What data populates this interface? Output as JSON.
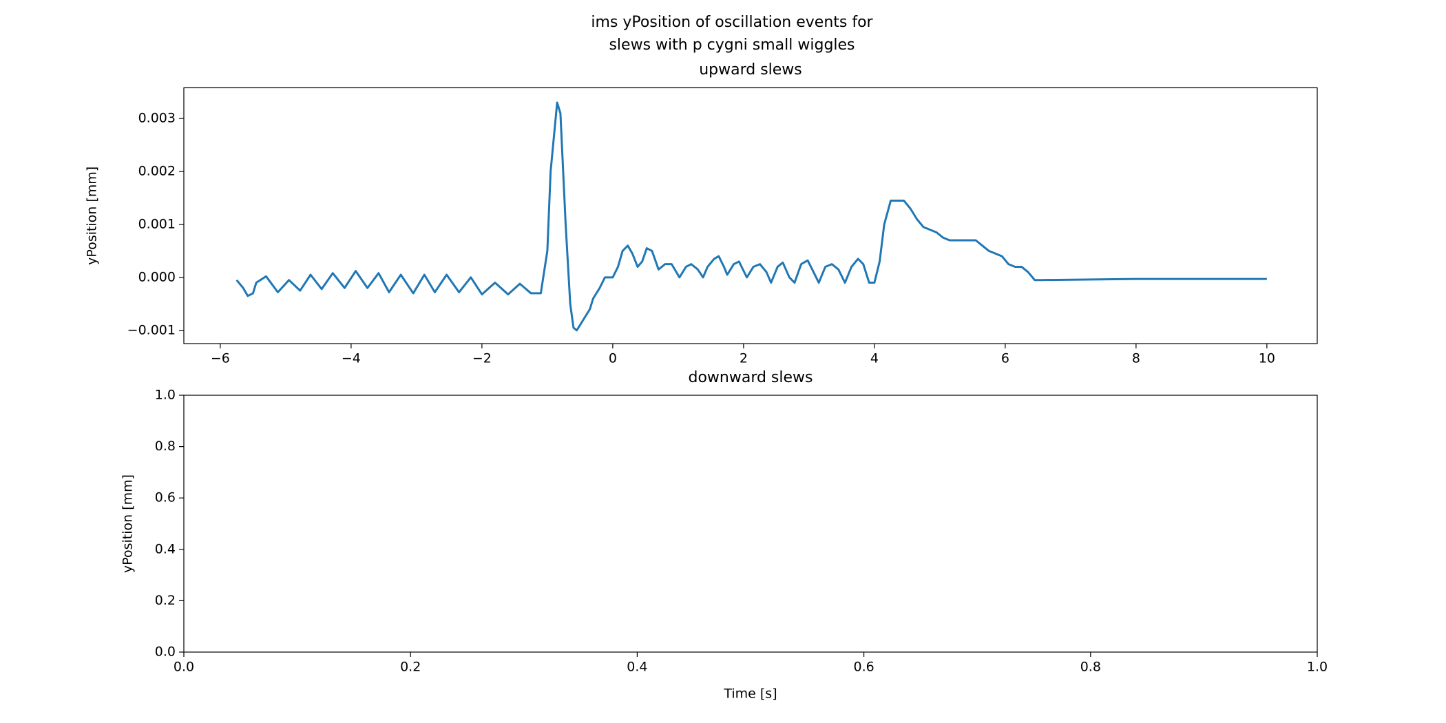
{
  "title": [
    "ims yPosition of oscillation events for",
    "slews with p cygni small wiggles"
  ],
  "chart_data": [
    {
      "type": "line",
      "title": "upward slews",
      "ylabel": "yPosition [mm]",
      "xlim": [
        -6.557,
        10.77
      ],
      "ylim": [
        -0.00125,
        0.00358
      ],
      "xticks": [
        {
          "value": -6,
          "label": "−6"
        },
        {
          "value": -4,
          "label": "−4"
        },
        {
          "value": -2,
          "label": "−2"
        },
        0,
        2,
        4,
        6,
        8,
        10
      ],
      "yticks": [
        {
          "value": -0.001,
          "label": "−0.001"
        },
        {
          "value": 0,
          "label": "0.000"
        },
        0.001,
        0.002,
        0.003
      ],
      "x": [
        -5.75,
        -5.65,
        -5.58,
        -5.5,
        -5.45,
        -5.3,
        -5.12,
        -4.95,
        -4.78,
        -4.62,
        -4.45,
        -4.28,
        -4.1,
        -3.93,
        -3.75,
        -3.58,
        -3.42,
        -3.24,
        -3.05,
        -2.88,
        -2.72,
        -2.54,
        -2.35,
        -2.17,
        -2.0,
        -1.8,
        -1.6,
        -1.42,
        -1.25,
        -1.1,
        -1.0,
        -0.95,
        -0.85,
        -0.8,
        -0.72,
        -0.65,
        -0.6,
        -0.55,
        -0.45,
        -0.35,
        -0.3,
        -0.2,
        -0.12,
        0.0,
        0.08,
        0.15,
        0.23,
        0.3,
        0.38,
        0.45,
        0.52,
        0.6,
        0.7,
        0.8,
        0.9,
        1.02,
        1.12,
        1.2,
        1.3,
        1.38,
        1.45,
        1.55,
        1.62,
        1.7,
        1.75,
        1.85,
        1.93,
        2.05,
        2.15,
        2.25,
        2.35,
        2.42,
        2.52,
        2.6,
        2.7,
        2.78,
        2.88,
        2.98,
        3.05,
        3.15,
        3.25,
        3.35,
        3.45,
        3.55,
        3.65,
        3.75,
        3.83,
        3.92,
        4.0,
        4.08,
        4.15,
        4.25,
        4.35,
        4.45,
        4.55,
        4.65,
        4.75,
        4.85,
        4.95,
        5.05,
        5.15,
        5.55,
        5.65,
        5.75,
        5.85,
        5.95,
        6.05,
        6.15,
        6.25,
        6.35,
        6.45,
        6.55,
        8,
        10
      ],
      "series": [
        {
          "color": "#1f77b4",
          "values": [
            -5e-05,
            -0.0002,
            -0.00035,
            -0.0003,
            -0.0001,
            2e-05,
            -0.00028,
            -5e-05,
            -0.00025,
            5e-05,
            -0.00022,
            8e-05,
            -0.0002,
            0.00012,
            -0.0002,
            8e-05,
            -0.00028,
            5e-05,
            -0.0003,
            5e-05,
            -0.00028,
            5e-05,
            -0.00028,
            0.0,
            -0.00032,
            -0.0001,
            -0.00032,
            -0.00012,
            -0.0003,
            -0.0003,
            0.0005,
            0.002,
            0.0033,
            0.0031,
            0.001,
            -0.0005,
            -0.00095,
            -0.001,
            -0.0008,
            -0.0006,
            -0.0004,
            -0.0002,
            0.0,
            0.0,
            0.0002,
            0.0005,
            0.0006,
            0.00045,
            0.0002,
            0.0003,
            0.00055,
            0.0005,
            0.00015,
            0.00025,
            0.00025,
            0.0,
            0.0002,
            0.00025,
            0.00015,
            0.0,
            0.0002,
            0.00035,
            0.0004,
            0.0002,
            5e-05,
            0.00025,
            0.0003,
            0.0,
            0.0002,
            0.00025,
            0.0001,
            -0.0001,
            0.0002,
            0.00028,
            0.0,
            -0.0001,
            0.00025,
            0.00032,
            0.00015,
            -0.0001,
            0.0002,
            0.00025,
            0.00015,
            -0.0001,
            0.0002,
            0.00035,
            0.00025,
            -0.0001,
            -0.0001,
            0.0003,
            0.001,
            0.00145,
            0.00145,
            0.00145,
            0.0013,
            0.0011,
            0.00095,
            0.0009,
            0.00085,
            0.00075,
            0.0007,
            0.0007,
            0.0006,
            0.0005,
            0.00045,
            0.0004,
            0.00025,
            0.0002,
            0.0002,
            0.0001,
            -5e-05,
            -5e-05,
            -3e-05,
            -3e-05
          ]
        }
      ]
    },
    {
      "type": "line",
      "title": "downward slews",
      "xlabel": "Time [s]",
      "ylabel": "yPosition [mm]",
      "xlim": [
        0,
        1
      ],
      "ylim": [
        0,
        1
      ],
      "xticks": [
        {
          "value": 0,
          "label": "0.0"
        },
        0.2,
        0.4,
        0.6,
        0.8,
        {
          "value": 1,
          "label": "1.0"
        }
      ],
      "yticks": [
        {
          "value": 0,
          "label": "0.0"
        },
        0.2,
        0.4,
        0.6,
        0.8,
        {
          "value": 1,
          "label": "1.0"
        }
      ],
      "x": [],
      "series": []
    }
  ]
}
